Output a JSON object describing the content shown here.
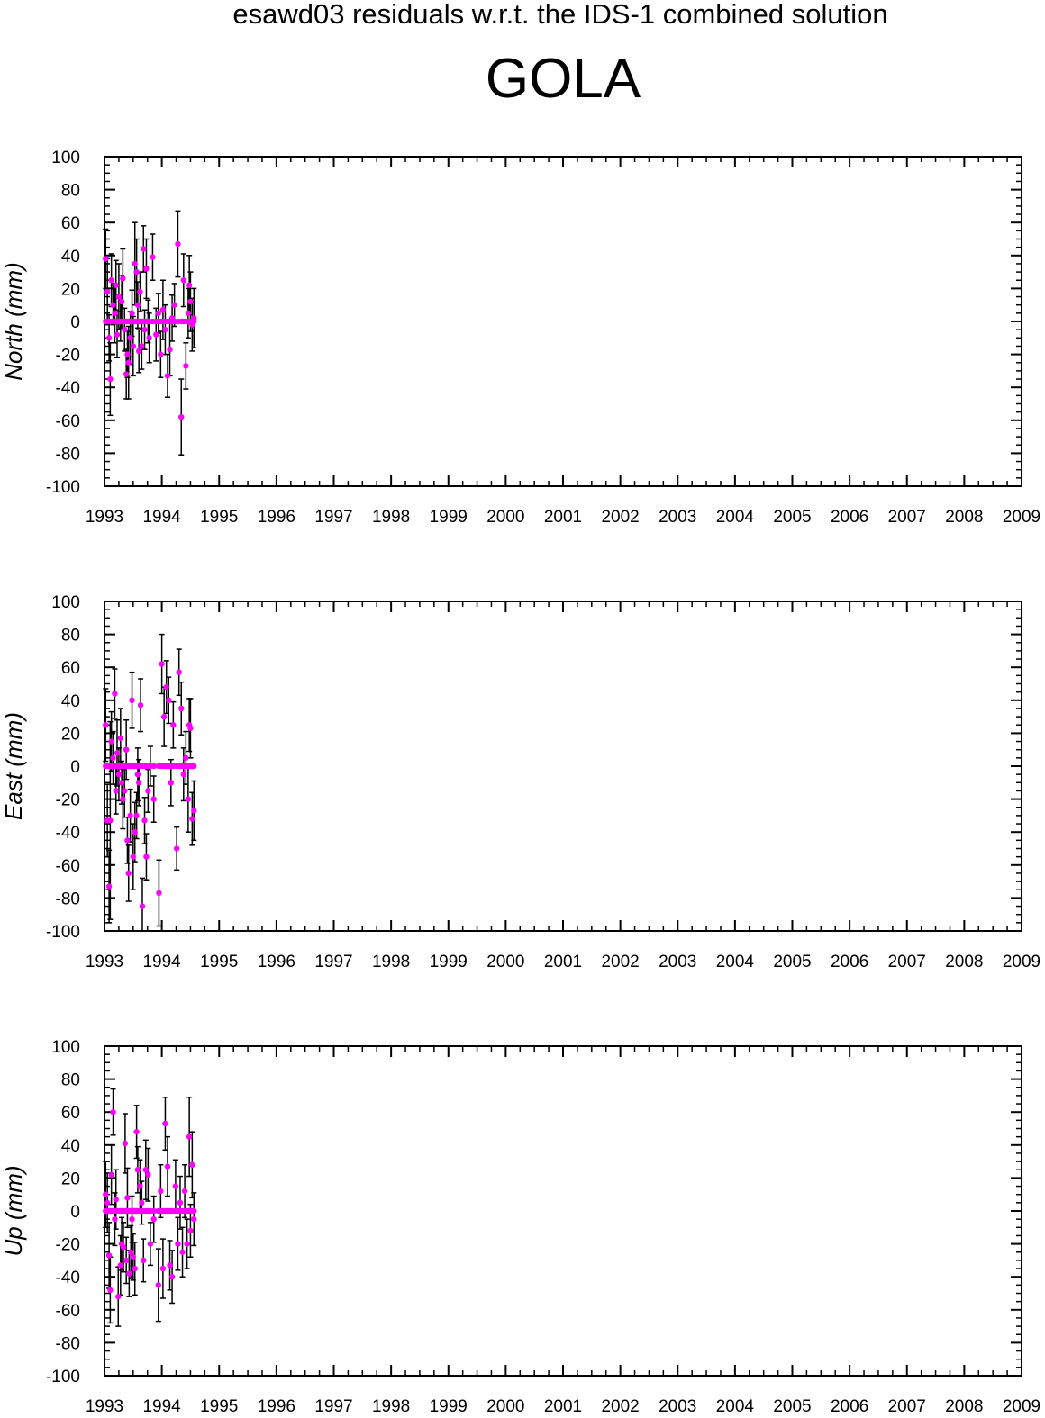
{
  "page": {
    "title": "esawd03 residuals w.r.t. the IDS-1 combined solution",
    "station": "GOLA"
  },
  "colors": {
    "point": "#ff00ff",
    "error_bar": "#000000",
    "axis": "#000000"
  },
  "chart_data": [
    {
      "type": "scatter",
      "ylabel": "North (mm)",
      "xlim": [
        1993,
        2009
      ],
      "ylim": [
        -100,
        100
      ],
      "x_ticks": [
        1993,
        1994,
        1995,
        1996,
        1997,
        1998,
        1999,
        2000,
        2001,
        2002,
        2003,
        2004,
        2005,
        2006,
        2007,
        2008,
        2009
      ],
      "y_ticks": [
        -100,
        -80,
        -60,
        -40,
        -20,
        0,
        20,
        40,
        60,
        80,
        100
      ],
      "grid": false,
      "error_bars": true,
      "points": [
        [
          1993.02,
          38,
          18
        ],
        [
          1993.05,
          18,
          20
        ],
        [
          1993.08,
          -10,
          14
        ],
        [
          1993.1,
          -35,
          22
        ],
        [
          1993.12,
          25,
          16
        ],
        [
          1993.15,
          10,
          12
        ],
        [
          1993.18,
          5,
          18
        ],
        [
          1993.2,
          22,
          15
        ],
        [
          1993.22,
          -8,
          14
        ],
        [
          1993.25,
          15,
          20
        ],
        [
          1993.28,
          0,
          12
        ],
        [
          1993.3,
          12,
          16
        ],
        [
          1993.32,
          26,
          18
        ],
        [
          1993.35,
          -5,
          13
        ],
        [
          1993.38,
          -32,
          15
        ],
        [
          1993.4,
          -20,
          14
        ],
        [
          1993.42,
          -25,
          22
        ],
        [
          1993.45,
          -10,
          16
        ],
        [
          1993.48,
          5,
          14
        ],
        [
          1993.5,
          -15,
          18
        ],
        [
          1993.53,
          35,
          25
        ],
        [
          1993.56,
          30,
          20
        ],
        [
          1993.58,
          10,
          14
        ],
        [
          1993.6,
          -18,
          13
        ],
        [
          1993.62,
          18,
          12
        ],
        [
          1993.65,
          -15,
          14
        ],
        [
          1993.68,
          44,
          14
        ],
        [
          1993.7,
          -5,
          12
        ],
        [
          1993.73,
          32,
          18
        ],
        [
          1993.76,
          0,
          13
        ],
        [
          1993.78,
          -10,
          15
        ],
        [
          1993.84,
          39,
          14
        ],
        [
          1993.9,
          -8,
          16
        ],
        [
          1993.94,
          5,
          12
        ],
        [
          1993.98,
          -20,
          14
        ],
        [
          1994.02,
          7,
          18
        ],
        [
          1994.06,
          -5,
          15
        ],
        [
          1994.1,
          -33,
          13
        ],
        [
          1994.14,
          -17,
          16
        ],
        [
          1994.18,
          2,
          14
        ],
        [
          1994.22,
          10,
          13
        ],
        [
          1994.28,
          47,
          20
        ],
        [
          1994.34,
          -58,
          23
        ],
        [
          1994.38,
          25,
          16
        ],
        [
          1994.42,
          -27,
          14
        ],
        [
          1994.46,
          5,
          15
        ],
        [
          1994.48,
          22,
          18
        ],
        [
          1994.5,
          12,
          18
        ],
        [
          1994.53,
          -2,
          16
        ],
        [
          1994.56,
          2,
          18
        ]
      ]
    },
    {
      "type": "scatter",
      "ylabel": "East (mm)",
      "xlim": [
        1993,
        2009
      ],
      "ylim": [
        -100,
        100
      ],
      "x_ticks": [
        1993,
        1994,
        1995,
        1996,
        1997,
        1998,
        1999,
        2000,
        2001,
        2002,
        2003,
        2004,
        2005,
        2006,
        2007,
        2008,
        2009
      ],
      "y_ticks": [
        -100,
        -80,
        -60,
        -40,
        -20,
        0,
        20,
        40,
        60,
        80,
        100
      ],
      "grid": false,
      "error_bars": true,
      "points": [
        [
          1993.02,
          25,
          22
        ],
        [
          1993.05,
          -33,
          22
        ],
        [
          1993.08,
          -73,
          22
        ],
        [
          1993.1,
          -33,
          60
        ],
        [
          1993.12,
          15,
          18
        ],
        [
          1993.15,
          5,
          16
        ],
        [
          1993.18,
          44,
          15
        ],
        [
          1993.2,
          -15,
          14
        ],
        [
          1993.22,
          8,
          20
        ],
        [
          1993.25,
          -5,
          16
        ],
        [
          1993.28,
          17,
          18
        ],
        [
          1993.3,
          -10,
          13
        ],
        [
          1993.32,
          -20,
          18
        ],
        [
          1993.35,
          -15,
          16
        ],
        [
          1993.38,
          10,
          18
        ],
        [
          1993.4,
          -45,
          14
        ],
        [
          1993.42,
          -65,
          17
        ],
        [
          1993.45,
          -30,
          16
        ],
        [
          1993.48,
          40,
          17
        ],
        [
          1993.5,
          -55,
          20
        ],
        [
          1993.53,
          -40,
          18
        ],
        [
          1993.56,
          -30,
          14
        ],
        [
          1993.58,
          -5,
          16
        ],
        [
          1993.6,
          -10,
          14
        ],
        [
          1993.63,
          37,
          16
        ],
        [
          1993.66,
          -85,
          17
        ],
        [
          1993.7,
          -33,
          14
        ],
        [
          1993.73,
          -55,
          14
        ],
        [
          1993.76,
          -15,
          13
        ],
        [
          1993.8,
          0,
          12
        ],
        [
          1993.86,
          -20,
          14
        ],
        [
          1993.95,
          -77,
          20
        ],
        [
          1994.0,
          62,
          18
        ],
        [
          1994.04,
          30,
          18
        ],
        [
          1994.08,
          48,
          16
        ],
        [
          1994.12,
          40,
          14
        ],
        [
          1994.16,
          -10,
          14
        ],
        [
          1994.2,
          25,
          14
        ],
        [
          1994.26,
          -50,
          13
        ],
        [
          1994.3,
          57,
          14
        ],
        [
          1994.34,
          35,
          16
        ],
        [
          1994.38,
          -5,
          16
        ],
        [
          1994.42,
          5,
          16
        ],
        [
          1994.46,
          -20,
          20
        ],
        [
          1994.48,
          25,
          16
        ],
        [
          1994.5,
          23,
          18
        ],
        [
          1994.53,
          -32,
          16
        ],
        [
          1994.56,
          -27,
          18
        ]
      ]
    },
    {
      "type": "scatter",
      "ylabel": "Up (mm)",
      "xlim": [
        1993,
        2009
      ],
      "ylim": [
        -100,
        100
      ],
      "x_ticks": [
        1993,
        1994,
        1995,
        1996,
        1997,
        1998,
        1999,
        2000,
        2001,
        2002,
        2003,
        2004,
        2005,
        2006,
        2007,
        2008,
        2009
      ],
      "y_ticks": [
        -100,
        -80,
        -60,
        -40,
        -20,
        0,
        20,
        40,
        60,
        80,
        100
      ],
      "grid": false,
      "error_bars": true,
      "points": [
        [
          1993.02,
          10,
          20
        ],
        [
          1993.05,
          5,
          18
        ],
        [
          1993.08,
          -27,
          20
        ],
        [
          1993.1,
          -48,
          20
        ],
        [
          1993.12,
          22,
          18
        ],
        [
          1993.15,
          60,
          14
        ],
        [
          1993.18,
          -5,
          16
        ],
        [
          1993.2,
          7,
          18
        ],
        [
          1993.24,
          -52,
          18
        ],
        [
          1993.28,
          -33,
          18
        ],
        [
          1993.3,
          -20,
          16
        ],
        [
          1993.33,
          -22,
          15
        ],
        [
          1993.36,
          41,
          18
        ],
        [
          1993.38,
          -30,
          14
        ],
        [
          1993.4,
          8,
          18
        ],
        [
          1993.43,
          -38,
          14
        ],
        [
          1993.46,
          -25,
          16
        ],
        [
          1993.48,
          -5,
          14
        ],
        [
          1993.5,
          -28,
          14
        ],
        [
          1993.53,
          -35,
          16
        ],
        [
          1993.56,
          48,
          16
        ],
        [
          1993.58,
          25,
          14
        ],
        [
          1993.62,
          15,
          16
        ],
        [
          1993.65,
          5,
          13
        ],
        [
          1993.68,
          -30,
          13
        ],
        [
          1993.72,
          25,
          18
        ],
        [
          1993.76,
          22,
          16
        ],
        [
          1993.8,
          -20,
          13
        ],
        [
          1993.86,
          -5,
          14
        ],
        [
          1993.94,
          -45,
          22
        ],
        [
          1993.98,
          12,
          16
        ],
        [
          1994.02,
          -35,
          18
        ],
        [
          1994.06,
          53,
          16
        ],
        [
          1994.1,
          27,
          18
        ],
        [
          1994.14,
          -33,
          15
        ],
        [
          1994.18,
          -40,
          16
        ],
        [
          1994.24,
          15,
          16
        ],
        [
          1994.28,
          -20,
          16
        ],
        [
          1994.32,
          5,
          16
        ],
        [
          1994.36,
          -25,
          15
        ],
        [
          1994.4,
          12,
          16
        ],
        [
          1994.44,
          -20,
          15
        ],
        [
          1994.48,
          45,
          24
        ],
        [
          1994.5,
          -12,
          16
        ],
        [
          1994.53,
          28,
          20
        ],
        [
          1994.56,
          -5,
          16
        ]
      ]
    }
  ]
}
